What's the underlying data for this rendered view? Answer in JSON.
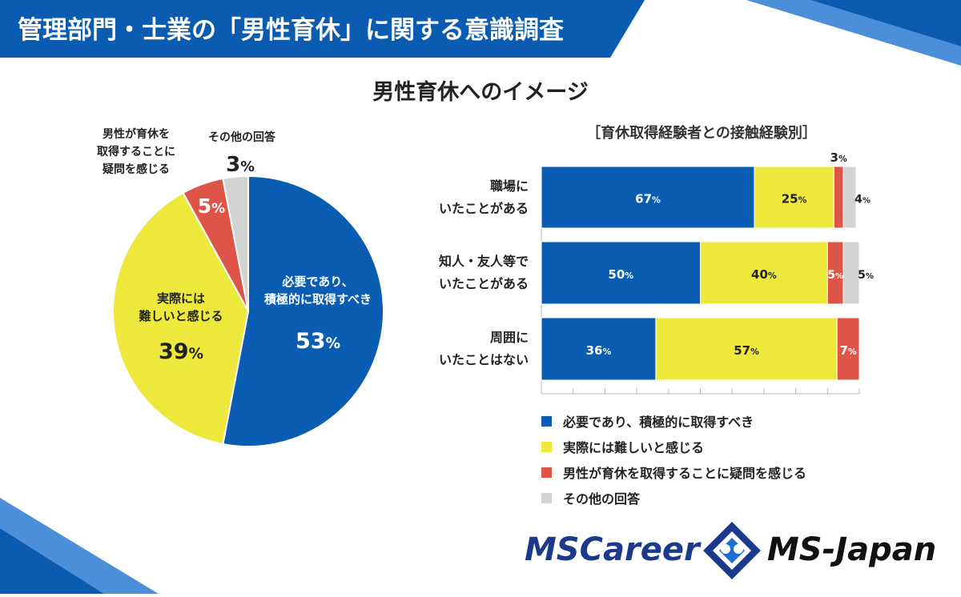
{
  "header": {
    "title": "管理部門・士業の「男性育休」に関する意識調査"
  },
  "colors": {
    "blue": "#0b5db3",
    "yellow": "#ede83b",
    "red": "#de5548",
    "gray": "#d3d3d3",
    "header_blue": "#0b5cb0",
    "navy_text": "#1b3a8c"
  },
  "chart_data": [
    {
      "type": "pie",
      "title": "男性育休へのイメージ",
      "slices": [
        {
          "label_lines": [
            "必要であり、",
            "積極的に取得すべき"
          ],
          "value": 53,
          "value_text": "53",
          "color": "#0b5db3"
        },
        {
          "label_lines": [
            "実際には",
            "難しいと感じる"
          ],
          "value": 39,
          "value_text": "39",
          "color": "#ede83b"
        },
        {
          "label_lines": [
            "男性が育休を",
            "取得することに",
            "疑問を感じる"
          ],
          "value": 5,
          "value_text": "5",
          "color": "#de5548"
        },
        {
          "label_lines": [
            "その他の回答"
          ],
          "value": 3,
          "value_text": "3",
          "color": "#d3d3d3"
        }
      ],
      "unit": "%"
    },
    {
      "type": "bar",
      "orientation": "horizontal",
      "stacked": true,
      "subtitle": "［育休取得経験者との接触経験別］",
      "categories": [
        {
          "lines": [
            "職場に",
            "いたことがある"
          ]
        },
        {
          "lines": [
            "知人・友人等で",
            "いたことがある"
          ]
        },
        {
          "lines": [
            "周囲に",
            "いたことはない"
          ]
        }
      ],
      "series": [
        {
          "name": "必要であり、積極的に取得すべき",
          "color": "#0b5db3",
          "values": [
            67,
            50,
            36
          ],
          "labels": [
            "67",
            "50",
            "36"
          ]
        },
        {
          "name": "実際には難しいと感じる",
          "color": "#ede83b",
          "values": [
            25,
            40,
            57
          ],
          "labels": [
            "25",
            "40",
            "57"
          ]
        },
        {
          "name": "男性が育休を取得することに疑問を感じる",
          "color": "#de5548",
          "values": [
            3,
            5,
            7
          ],
          "labels": [
            "3",
            "5",
            "7"
          ]
        },
        {
          "name": "その他の回答",
          "color": "#d3d3d3",
          "values": [
            4,
            5,
            0
          ],
          "labels": [
            "4",
            "5",
            ""
          ]
        }
      ],
      "unit": "%",
      "xlim": [
        0,
        100
      ]
    }
  ],
  "logos": {
    "left": "MSCareer",
    "right": "MS-Japan"
  }
}
